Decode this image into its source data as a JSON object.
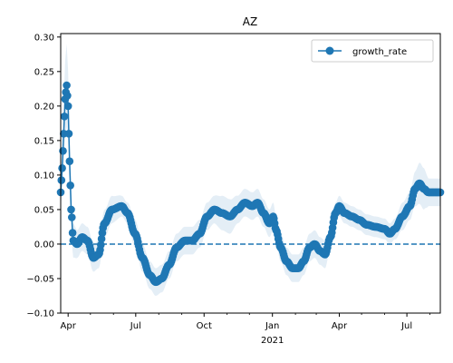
{
  "chart_data": {
    "type": "line",
    "title": "AZ",
    "xlabel": "",
    "ylabel": "",
    "legend_position": "top-right",
    "grid": false,
    "x_range": [
      "2020-03-22",
      "2021-08-15"
    ],
    "ylim": [
      -0.1,
      0.305
    ],
    "y_ticks": [
      -0.1,
      -0.05,
      0.0,
      0.05,
      0.1,
      0.15,
      0.2,
      0.25,
      0.3
    ],
    "y_tick_labels": [
      "−0.10",
      "−0.05",
      "0.00",
      "0.05",
      "0.10",
      "0.15",
      "0.20",
      "0.25",
      "0.30"
    ],
    "x_ticks": [
      {
        "date": "2020-04-01",
        "label": "Apr"
      },
      {
        "date": "2020-07-01",
        "label": "Jul"
      },
      {
        "date": "2020-10-01",
        "label": "Oct"
      },
      {
        "date": "2021-01-01",
        "label": "Jan",
        "sublabel": "2021"
      },
      {
        "date": "2021-04-01",
        "label": "Apr"
      },
      {
        "date": "2021-07-01",
        "label": "Jul"
      }
    ],
    "x_minor_ticks": [
      "2020-05-01",
      "2020-06-01",
      "2020-08-01",
      "2020-09-01",
      "2020-11-01",
      "2020-12-01",
      "2021-02-01",
      "2021-03-01",
      "2021-05-01",
      "2021-06-01",
      "2021-08-01"
    ],
    "reference_line": {
      "y": 0.0,
      "style": "dashed"
    },
    "colors": {
      "series": "#1f77b4",
      "band": "#1f77b4"
    },
    "series": [
      {
        "name": "growth_rate",
        "marker": "circle",
        "points": [
          {
            "x": "2020-03-22",
            "y": 0.075
          },
          {
            "x": "2020-03-24",
            "y": 0.11
          },
          {
            "x": "2020-03-26",
            "y": 0.16
          },
          {
            "x": "2020-03-28",
            "y": 0.21
          },
          {
            "x": "2020-03-30",
            "y": 0.23
          },
          {
            "x": "2020-04-01",
            "y": 0.2
          },
          {
            "x": "2020-04-03",
            "y": 0.12
          },
          {
            "x": "2020-04-05",
            "y": 0.05
          },
          {
            "x": "2020-04-08",
            "y": 0.005
          },
          {
            "x": "2020-04-13",
            "y": 0.0
          },
          {
            "x": "2020-04-20",
            "y": 0.01
          },
          {
            "x": "2020-04-27",
            "y": 0.005
          },
          {
            "x": "2020-05-05",
            "y": -0.02
          },
          {
            "x": "2020-05-12",
            "y": -0.015
          },
          {
            "x": "2020-05-20",
            "y": 0.03
          },
          {
            "x": "2020-05-30",
            "y": 0.05
          },
          {
            "x": "2020-06-12",
            "y": 0.055
          },
          {
            "x": "2020-06-20",
            "y": 0.045
          },
          {
            "x": "2020-06-30",
            "y": 0.015
          },
          {
            "x": "2020-07-10",
            "y": -0.02
          },
          {
            "x": "2020-07-20",
            "y": -0.045
          },
          {
            "x": "2020-07-28",
            "y": -0.055
          },
          {
            "x": "2020-08-05",
            "y": -0.05
          },
          {
            "x": "2020-08-15",
            "y": -0.03
          },
          {
            "x": "2020-08-25",
            "y": -0.005
          },
          {
            "x": "2020-09-05",
            "y": 0.005
          },
          {
            "x": "2020-09-15",
            "y": 0.005
          },
          {
            "x": "2020-09-25",
            "y": 0.015
          },
          {
            "x": "2020-10-05",
            "y": 0.04
          },
          {
            "x": "2020-10-15",
            "y": 0.05
          },
          {
            "x": "2020-10-25",
            "y": 0.045
          },
          {
            "x": "2020-11-05",
            "y": 0.04
          },
          {
            "x": "2020-11-15",
            "y": 0.05
          },
          {
            "x": "2020-11-25",
            "y": 0.06
          },
          {
            "x": "2020-12-05",
            "y": 0.055
          },
          {
            "x": "2020-12-12",
            "y": 0.06
          },
          {
            "x": "2020-12-20",
            "y": 0.045
          },
          {
            "x": "2020-12-28",
            "y": 0.03
          },
          {
            "x": "2021-01-02",
            "y": 0.04
          },
          {
            "x": "2021-01-06",
            "y": 0.02
          },
          {
            "x": "2021-01-12",
            "y": -0.005
          },
          {
            "x": "2021-01-20",
            "y": -0.025
          },
          {
            "x": "2021-01-28",
            "y": -0.035
          },
          {
            "x": "2021-02-05",
            "y": -0.035
          },
          {
            "x": "2021-02-12",
            "y": -0.025
          },
          {
            "x": "2021-02-20",
            "y": -0.005
          },
          {
            "x": "2021-02-27",
            "y": 0.0
          },
          {
            "x": "2021-03-06",
            "y": -0.01
          },
          {
            "x": "2021-03-13",
            "y": -0.015
          },
          {
            "x": "2021-03-20",
            "y": 0.01
          },
          {
            "x": "2021-03-27",
            "y": 0.045
          },
          {
            "x": "2021-04-01",
            "y": 0.055
          },
          {
            "x": "2021-04-08",
            "y": 0.045
          },
          {
            "x": "2021-04-18",
            "y": 0.04
          },
          {
            "x": "2021-04-28",
            "y": 0.035
          },
          {
            "x": "2021-05-08",
            "y": 0.028
          },
          {
            "x": "2021-05-20",
            "y": 0.025
          },
          {
            "x": "2021-06-01",
            "y": 0.022
          },
          {
            "x": "2021-06-08",
            "y": 0.015
          },
          {
            "x": "2021-06-15",
            "y": 0.022
          },
          {
            "x": "2021-06-25",
            "y": 0.04
          },
          {
            "x": "2021-07-05",
            "y": 0.055
          },
          {
            "x": "2021-07-12",
            "y": 0.08
          },
          {
            "x": "2021-07-18",
            "y": 0.088
          },
          {
            "x": "2021-07-24",
            "y": 0.08
          },
          {
            "x": "2021-07-30",
            "y": 0.075
          },
          {
            "x": "2021-08-15",
            "y": 0.075
          }
        ],
        "band_width": [
          0.02,
          0.035,
          0.045,
          0.055,
          0.06,
          0.05,
          0.04,
          0.03,
          0.025,
          0.02,
          0.02,
          0.02,
          0.02,
          0.02,
          0.02,
          0.02,
          0.015,
          0.015,
          0.02,
          0.02,
          0.02,
          0.02,
          0.02,
          0.02,
          0.02,
          0.02,
          0.02,
          0.02,
          0.02,
          0.02,
          0.025,
          0.025,
          0.02,
          0.02,
          0.02,
          0.02,
          0.02,
          0.02,
          0.02,
          0.02,
          0.02,
          0.02,
          0.02,
          0.02,
          0.02,
          0.02,
          0.02,
          0.02,
          0.02,
          0.015,
          0.015,
          0.015,
          0.015,
          0.015,
          0.015,
          0.015,
          0.015,
          0.015,
          0.015,
          0.015,
          0.02,
          0.02,
          0.025,
          0.03,
          0.03,
          0.02,
          0.02
        ]
      }
    ]
  }
}
